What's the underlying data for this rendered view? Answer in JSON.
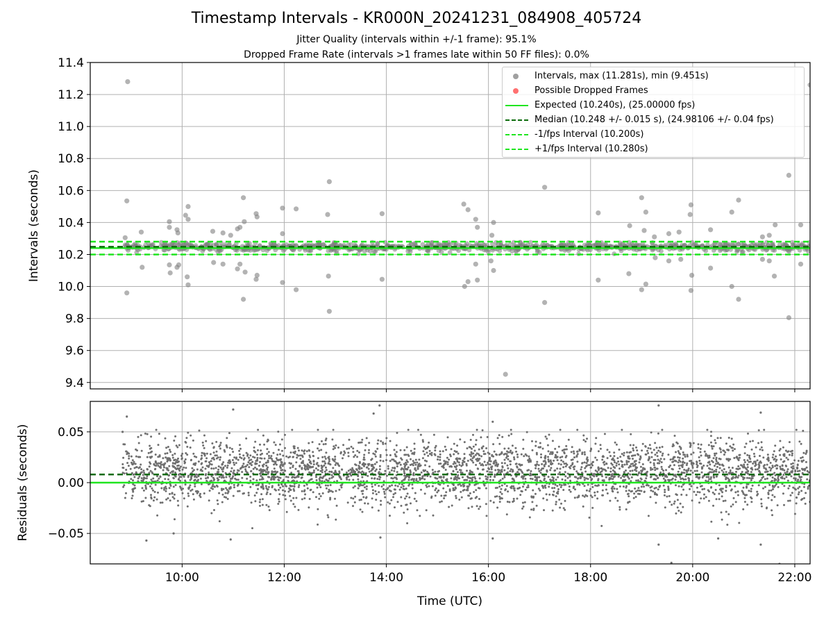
{
  "title": "Timestamp Intervals - KR000N_20241231_084908_405724",
  "subtitle_jitter": "Jitter Quality (intervals within +/-1 frame): 95.1%",
  "subtitle_dropped": "Dropped Frame Rate (intervals >1 frames late within 50 FF files): 0.0%",
  "colors": {
    "points": "#808080",
    "dropped": "#ff5555",
    "expected": "#1fe51f",
    "median": "#0a6b0a",
    "fps_interval": "#1fe51f"
  },
  "chart_data": [
    {
      "type": "scatter",
      "name": "intervals",
      "ylabel": "Intervals (seconds)",
      "xlim": [
        "08:12",
        "22:18"
      ],
      "ylim": [
        9.36,
        11.4
      ],
      "yticks": [
        "9.4",
        "9.6",
        "9.8",
        "10.0",
        "10.2",
        "10.4",
        "10.6",
        "10.8",
        "11.0",
        "11.2",
        "11.4"
      ],
      "grid": true,
      "legend_position": "top-right",
      "series": [
        {
          "name": "Intervals, max (11.281s), min (9.451s)",
          "style": "scatter"
        },
        {
          "name": "Possible Dropped Frames",
          "style": "scatter"
        },
        {
          "name": "Expected (10.240s), (25.00000 fps)",
          "style": "solid",
          "y": 10.24
        },
        {
          "name": "Median (10.248 +/- 0.015 s), (24.98106 +/- 0.04 fps)",
          "style": "dashed",
          "y": 10.248
        },
        {
          "name": "-1/fps Interval (10.200s)",
          "style": "dashed",
          "y": 10.2
        },
        {
          "name": "+1/fps Interval (10.280s)",
          "style": "dashed",
          "y": 10.28
        }
      ],
      "core_band": {
        "x_start": "08:50",
        "x_end": "22:18",
        "y_min": 10.2,
        "y_max": 10.28
      },
      "outliers": [
        {
          "x": "08:56",
          "y": 11.28
        },
        {
          "x": "08:55",
          "y": 10.535
        },
        {
          "x": "08:55",
          "y": 9.96
        },
        {
          "x": "08:53",
          "y": 10.305
        },
        {
          "x": "09:13",
          "y": 10.12
        },
        {
          "x": "09:12",
          "y": 10.34
        },
        {
          "x": "09:45",
          "y": 10.405
        },
        {
          "x": "09:45",
          "y": 10.37
        },
        {
          "x": "09:45",
          "y": 10.135
        },
        {
          "x": "09:46",
          "y": 10.085
        },
        {
          "x": "09:54",
          "y": 10.355
        },
        {
          "x": "09:55",
          "y": 10.335
        },
        {
          "x": "09:54",
          "y": 10.12
        },
        {
          "x": "09:56",
          "y": 10.135
        },
        {
          "x": "10:04",
          "y": 10.445
        },
        {
          "x": "10:07",
          "y": 10.5
        },
        {
          "x": "10:07",
          "y": 10.42
        },
        {
          "x": "10:06",
          "y": 10.06
        },
        {
          "x": "10:07",
          "y": 10.01
        },
        {
          "x": "10:36",
          "y": 10.345
        },
        {
          "x": "10:37",
          "y": 10.15
        },
        {
          "x": "10:48",
          "y": 10.335
        },
        {
          "x": "10:48",
          "y": 10.14
        },
        {
          "x": "10:57",
          "y": 10.32
        },
        {
          "x": "11:05",
          "y": 10.36
        },
        {
          "x": "11:08",
          "y": 10.37
        },
        {
          "x": "11:05",
          "y": 10.11
        },
        {
          "x": "11:08",
          "y": 10.14
        },
        {
          "x": "11:12",
          "y": 10.555
        },
        {
          "x": "11:13",
          "y": 10.405
        },
        {
          "x": "11:12",
          "y": 9.92
        },
        {
          "x": "11:14",
          "y": 10.09
        },
        {
          "x": "11:27",
          "y": 10.455
        },
        {
          "x": "11:28",
          "y": 10.435
        },
        {
          "x": "11:28",
          "y": 10.07
        },
        {
          "x": "11:27",
          "y": 10.045
        },
        {
          "x": "11:58",
          "y": 10.49
        },
        {
          "x": "11:58",
          "y": 10.33
        },
        {
          "x": "11:58",
          "y": 10.025
        },
        {
          "x": "12:14",
          "y": 10.485
        },
        {
          "x": "12:14",
          "y": 9.98
        },
        {
          "x": "12:51",
          "y": 10.45
        },
        {
          "x": "12:52",
          "y": 10.065
        },
        {
          "x": "12:53",
          "y": 10.655
        },
        {
          "x": "12:53",
          "y": 9.845
        },
        {
          "x": "13:55",
          "y": 10.455
        },
        {
          "x": "13:55",
          "y": 10.045
        },
        {
          "x": "15:31",
          "y": 10.515
        },
        {
          "x": "15:36",
          "y": 10.48
        },
        {
          "x": "15:32",
          "y": 10.0
        },
        {
          "x": "15:36",
          "y": 10.03
        },
        {
          "x": "15:45",
          "y": 10.42
        },
        {
          "x": "15:47",
          "y": 10.37
        },
        {
          "x": "15:45",
          "y": 10.14
        },
        {
          "x": "15:47",
          "y": 10.04
        },
        {
          "x": "16:04",
          "y": 10.32
        },
        {
          "x": "16:06",
          "y": 10.4
        },
        {
          "x": "16:03",
          "y": 10.16
        },
        {
          "x": "16:06",
          "y": 10.1
        },
        {
          "x": "16:20",
          "y": 9.451
        },
        {
          "x": "17:06",
          "y": 10.62
        },
        {
          "x": "17:06",
          "y": 9.9
        },
        {
          "x": "18:09",
          "y": 10.46
        },
        {
          "x": "18:09",
          "y": 10.04
        },
        {
          "x": "18:46",
          "y": 10.38
        },
        {
          "x": "18:45",
          "y": 10.08
        },
        {
          "x": "19:00",
          "y": 10.555
        },
        {
          "x": "19:05",
          "y": 10.465
        },
        {
          "x": "19:03",
          "y": 10.35
        },
        {
          "x": "19:00",
          "y": 9.98
        },
        {
          "x": "19:05",
          "y": 10.015
        },
        {
          "x": "19:15",
          "y": 10.31
        },
        {
          "x": "19:16",
          "y": 10.18
        },
        {
          "x": "19:32",
          "y": 10.33
        },
        {
          "x": "19:32",
          "y": 10.16
        },
        {
          "x": "19:44",
          "y": 10.34
        },
        {
          "x": "19:46",
          "y": 10.17
        },
        {
          "x": "19:58",
          "y": 10.51
        },
        {
          "x": "19:57",
          "y": 10.45
        },
        {
          "x": "19:59",
          "y": 10.07
        },
        {
          "x": "19:58",
          "y": 9.975
        },
        {
          "x": "20:21",
          "y": 10.355
        },
        {
          "x": "20:21",
          "y": 10.115
        },
        {
          "x": "20:46",
          "y": 10.465
        },
        {
          "x": "20:46",
          "y": 10.0
        },
        {
          "x": "20:54",
          "y": 10.54
        },
        {
          "x": "20:54",
          "y": 9.92
        },
        {
          "x": "21:22",
          "y": 10.31
        },
        {
          "x": "21:22",
          "y": 10.17
        },
        {
          "x": "21:30",
          "y": 10.32
        },
        {
          "x": "21:30",
          "y": 10.16
        },
        {
          "x": "21:37",
          "y": 10.385
        },
        {
          "x": "21:36",
          "y": 10.065
        },
        {
          "x": "21:53",
          "y": 10.695
        },
        {
          "x": "21:53",
          "y": 9.805
        },
        {
          "x": "22:07",
          "y": 10.385
        },
        {
          "x": "22:07",
          "y": 10.14
        },
        {
          "x": "22:18",
          "y": 11.26
        }
      ]
    },
    {
      "type": "scatter",
      "name": "residuals",
      "xlabel": "Time (UTC)",
      "ylabel": "Residuals (seconds)",
      "xlim": [
        "08:12",
        "22:18"
      ],
      "ylim": [
        -0.08,
        0.08
      ],
      "xticks": [
        "10:00",
        "12:00",
        "14:00",
        "16:00",
        "18:00",
        "20:00",
        "22:00"
      ],
      "yticks": [
        "0.05",
        "0.00",
        "−0.05"
      ],
      "grid": true,
      "lines": [
        {
          "name": "median residual",
          "style": "dashed",
          "y": 0.008
        },
        {
          "name": "expected residual",
          "style": "solid",
          "y": 0.0
        }
      ],
      "point_cloud": {
        "x_start": "08:50",
        "x_end": "22:18",
        "y_mean": 0.01,
        "y_sd": 0.016,
        "approx_points": 3600
      },
      "outliers": [
        {
          "x": "08:50",
          "y": 0.05
        },
        {
          "x": "08:55",
          "y": 0.065
        },
        {
          "x": "11:00",
          "y": 0.072
        },
        {
          "x": "13:45",
          "y": 0.068
        },
        {
          "x": "13:52",
          "y": 0.076
        },
        {
          "x": "16:05",
          "y": 0.06
        },
        {
          "x": "19:20",
          "y": 0.076
        },
        {
          "x": "21:20",
          "y": 0.069
        },
        {
          "x": "09:18",
          "y": -0.057
        },
        {
          "x": "09:50",
          "y": -0.05
        },
        {
          "x": "10:57",
          "y": -0.056
        },
        {
          "x": "13:53",
          "y": -0.054
        },
        {
          "x": "16:05",
          "y": -0.055
        },
        {
          "x": "19:20",
          "y": -0.061
        },
        {
          "x": "19:35",
          "y": -0.079
        },
        {
          "x": "20:30",
          "y": -0.055
        },
        {
          "x": "21:20",
          "y": -0.061
        },
        {
          "x": "21:42",
          "y": -0.08
        }
      ]
    }
  ],
  "legend_items": [
    "Intervals, max (11.281s), min (9.451s)",
    "Possible Dropped Frames",
    "Expected (10.240s), (25.00000 fps)",
    "Median (10.248 +/- 0.015 s), (24.98106 +/- 0.04 fps)",
    "-1/fps Interval (10.200s)",
    "+1/fps Interval (10.280s)"
  ]
}
